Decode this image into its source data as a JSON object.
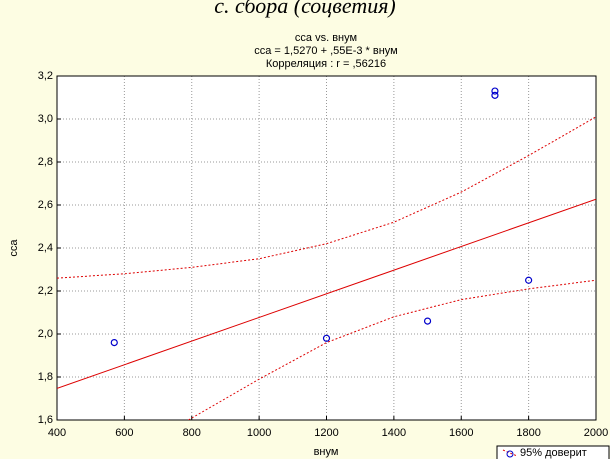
{
  "chart_data": {
    "type": "scatter",
    "caption": "с. сбора (соцветия)",
    "title": "сса vs. внум",
    "subtitle": "сса = 1,5270 + ,55E-3 * внум",
    "annotation": "Корреляция : r = ,56216",
    "xlabel": "внум",
    "ylabel": "сса",
    "xlim": [
      400,
      2000
    ],
    "ylim": [
      1.6,
      3.2
    ],
    "xticks": [
      400,
      600,
      800,
      1000,
      1200,
      1400,
      1600,
      1800,
      2000
    ],
    "yticks": [
      {
        "value": 1.6,
        "label": "1,6"
      },
      {
        "value": 1.8,
        "label": "1,8"
      },
      {
        "value": 2.0,
        "label": "2,0"
      },
      {
        "value": 2.2,
        "label": "2,2"
      },
      {
        "value": 2.4,
        "label": "2,4"
      },
      {
        "value": 2.6,
        "label": "2,6"
      },
      {
        "value": 2.8,
        "label": "2,8"
      },
      {
        "value": 3.0,
        "label": "3,0"
      },
      {
        "value": 3.2,
        "label": "3,2"
      }
    ],
    "grid": true,
    "points": {
      "color": "#0000cc",
      "x": [
        570,
        1200,
        1500,
        1700,
        1700,
        1800
      ],
      "values": [
        1.96,
        1.98,
        2.06,
        3.13,
        3.11,
        2.25
      ]
    },
    "fit": {
      "color": "#dd0000",
      "x": [
        400,
        2000
      ],
      "values": [
        1.747,
        2.627
      ]
    },
    "upper": {
      "color": "#dd0000",
      "x": [
        400,
        600,
        800,
        1000,
        1200,
        1400,
        1600,
        1800,
        2000
      ],
      "values": [
        2.26,
        2.28,
        2.31,
        2.35,
        2.42,
        2.52,
        2.66,
        2.83,
        3.01
      ]
    },
    "lower": {
      "color": "#dd0000",
      "x": [
        790,
        1000,
        1200,
        1400,
        1600,
        1800,
        2000
      ],
      "values": [
        1.6,
        1.79,
        1.96,
        2.08,
        2.16,
        2.21,
        2.25
      ]
    },
    "legend": {
      "label": "95% доверит",
      "position": "lower right"
    }
  }
}
